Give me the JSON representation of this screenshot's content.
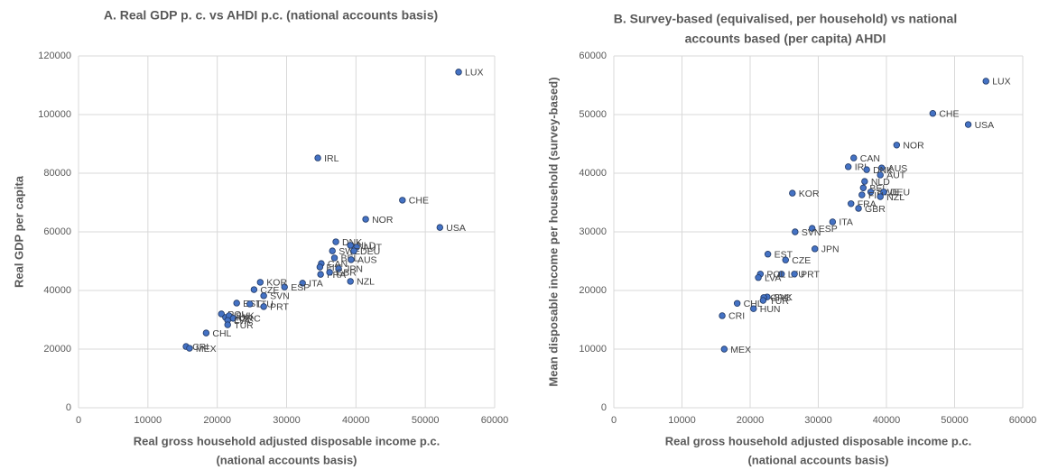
{
  "chart_data": [
    {
      "type": "scatter",
      "title": [
        "A. Real GDP p. c. vs AHDI p.c. (national accounts basis)"
      ],
      "xlabel": [
        "Real gross household adjusted disposable income p.c.",
        "(national accounts basis)"
      ],
      "ylabel": "Real GDP per capita",
      "color": "#4472c4",
      "labels": [
        "LUX",
        "IRL",
        "CHE",
        "NOR",
        "USA",
        "NZL",
        "DNK",
        "NLD",
        "AUT",
        "SWE",
        "DEU",
        "BEL",
        "AUS",
        "CAN",
        "FIN",
        "JPN",
        "FRA",
        "GBR",
        "ITA",
        "ESP",
        "CZE",
        "KOR",
        "SVN",
        "EST",
        "LTU",
        "PRT",
        "POL",
        "HUN",
        "SVK",
        "GRC",
        "LVA",
        "TUR",
        "CHL",
        "CRI",
        "MEX"
      ],
      "x": [
        54800,
        34500,
        46700,
        41400,
        52100,
        39200,
        37100,
        39200,
        40100,
        36600,
        39700,
        36900,
        39300,
        35000,
        34800,
        37500,
        34900,
        36200,
        32300,
        29700,
        25300,
        26200,
        26700,
        22800,
        24700,
        26700,
        20600,
        21200,
        21700,
        22300,
        21500,
        21500,
        18400,
        15500,
        16000
      ],
      "values": [
        114500,
        85200,
        70800,
        64300,
        61500,
        43100,
        56600,
        55400,
        54800,
        53500,
        53500,
        51100,
        50500,
        49200,
        48000,
        47400,
        45500,
        46200,
        42500,
        41200,
        40300,
        42800,
        38200,
        35700,
        35400,
        34500,
        32000,
        30800,
        31400,
        30500,
        29800,
        28300,
        25500,
        20900,
        20300
      ],
      "xlim": [
        0,
        60000
      ],
      "ylim": [
        0,
        120000
      ],
      "xticks": [
        0,
        10000,
        20000,
        30000,
        40000,
        50000,
        60000
      ],
      "yticks": [
        0,
        20000,
        40000,
        60000,
        80000,
        100000,
        120000
      ],
      "grid": true
    },
    {
      "type": "scatter",
      "title": [
        "B. Survey-based (equivalised, per household) vs national",
        "accounts based (per capita) AHDI"
      ],
      "xlabel": [
        "Real gross household adjusted disposable income p.c.",
        "(national accounts basis)"
      ],
      "ylabel": "Mean disposable income per household (survey-based)",
      "color": "#4472c4",
      "labels": [
        "LUX",
        "CHE",
        "USA",
        "NOR",
        "CAN",
        "IRL",
        "AUS",
        "DNK",
        "AUT",
        "NLD",
        "BEL",
        "SWE",
        "DEU",
        "FIN",
        "NZL",
        "FRA",
        "GBR",
        "KOR",
        "ITA",
        "ESP",
        "SVN",
        "JPN",
        "EST",
        "CZE",
        "LTU",
        "PRT",
        "POL",
        "LVA",
        "SVK",
        "GRC",
        "TUR",
        "CHL",
        "HUN",
        "CRI",
        "MEX"
      ],
      "x": [
        54600,
        46800,
        52000,
        41500,
        35200,
        34400,
        39300,
        37100,
        39100,
        36800,
        36600,
        37700,
        39600,
        36400,
        39100,
        34800,
        35900,
        26200,
        32100,
        29100,
        26600,
        29500,
        22600,
        25200,
        24600,
        26500,
        21500,
        21200,
        22500,
        22000,
        21900,
        18100,
        20500,
        15900,
        16200
      ],
      "values": [
        55700,
        50200,
        48300,
        44800,
        42600,
        41100,
        40900,
        40600,
        39700,
        38600,
        37500,
        36800,
        36800,
        36300,
        36000,
        34800,
        34000,
        36600,
        31700,
        30600,
        30000,
        27100,
        26200,
        25200,
        22800,
        22800,
        22800,
        22200,
        18900,
        18800,
        18300,
        17800,
        16900,
        15700,
        10000
      ],
      "xlim": [
        0,
        60000
      ],
      "ylim": [
        0,
        60000
      ],
      "xticks": [
        0,
        10000,
        20000,
        30000,
        40000,
        50000,
        60000
      ],
      "yticks": [
        0,
        10000,
        20000,
        30000,
        40000,
        50000,
        60000
      ],
      "grid": true
    }
  ]
}
